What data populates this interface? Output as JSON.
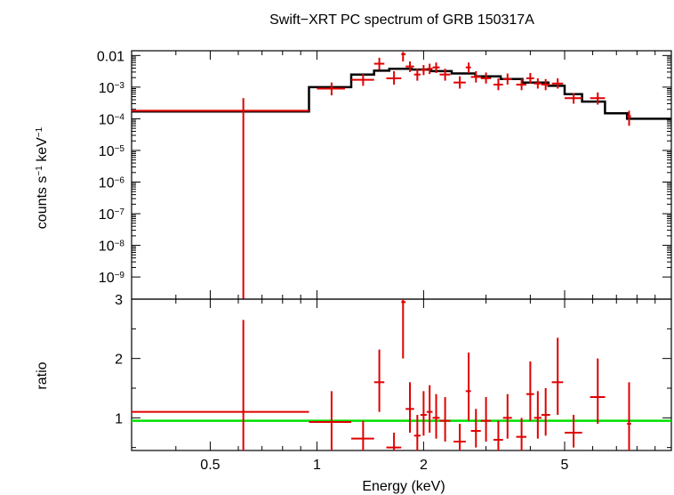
{
  "chart_data": {
    "type": "scatter",
    "title": "Swift−XRT PC spectrum of GRB 150317A",
    "xlabel": "Energy (keV)",
    "xscale": "log",
    "xlim": [
      0.3,
      10
    ],
    "xticks": [
      {
        "v": 0.5,
        "label": "0.5"
      },
      {
        "v": 1,
        "label": "1"
      },
      {
        "v": 2,
        "label": "2"
      },
      {
        "v": 5,
        "label": "5"
      }
    ],
    "top_panel": {
      "ylabel": "counts s",
      "ylabel_sup1": "−1",
      "ylabel_mid": " keV",
      "ylabel_sup2": "−1",
      "yscale": "log",
      "ylim_log10": [
        -9.7,
        -1.85
      ],
      "yticks": [
        {
          "e": -2,
          "base": "0.01",
          "sup": ""
        },
        {
          "e": -3,
          "base": "10",
          "sup": "−3"
        },
        {
          "e": -4,
          "base": "10",
          "sup": "−4"
        },
        {
          "e": -5,
          "base": "10",
          "sup": "−5"
        },
        {
          "e": -6,
          "base": "10",
          "sup": "−6"
        },
        {
          "e": -7,
          "base": "10",
          "sup": "−7"
        },
        {
          "e": -8,
          "base": "10",
          "sup": "−8"
        },
        {
          "e": -9,
          "base": "10",
          "sup": "−9"
        }
      ],
      "data": [
        {
          "xlo": 0.3,
          "xhi": 0.95,
          "x": 0.62,
          "y": 0.00018,
          "ylo": 1e-10,
          "yhi": 0.00045
        },
        {
          "xlo": 1.0,
          "xhi": 1.2,
          "x": 1.1,
          "y": 0.0009,
          "ylo": 0.00055,
          "yhi": 0.0014
        },
        {
          "xlo": 1.25,
          "xhi": 1.45,
          "x": 1.35,
          "y": 0.0017,
          "ylo": 0.0011,
          "yhi": 0.0026
        },
        {
          "xlo": 1.45,
          "xhi": 1.55,
          "x": 1.5,
          "y": 0.0055,
          "ylo": 0.0035,
          "yhi": 0.0085
        },
        {
          "xlo": 1.57,
          "xhi": 1.73,
          "x": 1.65,
          "y": 0.0019,
          "ylo": 0.0012,
          "yhi": 0.0032
        },
        {
          "xlo": 1.73,
          "xhi": 1.78,
          "x": 1.75,
          "y": 0.011,
          "ylo": 0.0065,
          "yhi": 0.013
        },
        {
          "xlo": 1.78,
          "xhi": 1.88,
          "x": 1.83,
          "y": 0.0045,
          "ylo": 0.003,
          "yhi": 0.0065
        },
        {
          "xlo": 1.88,
          "xhi": 1.96,
          "x": 1.92,
          "y": 0.0025,
          "ylo": 0.0016,
          "yhi": 0.0038
        },
        {
          "xlo": 1.96,
          "xhi": 2.04,
          "x": 2.0,
          "y": 0.0035,
          "ylo": 0.0024,
          "yhi": 0.005
        },
        {
          "xlo": 2.04,
          "xhi": 2.12,
          "x": 2.08,
          "y": 0.0038,
          "ylo": 0.0026,
          "yhi": 0.0055
        },
        {
          "xlo": 2.12,
          "xhi": 2.22,
          "x": 2.17,
          "y": 0.0042,
          "ylo": 0.0028,
          "yhi": 0.006
        },
        {
          "xlo": 2.22,
          "xhi": 2.38,
          "x": 2.3,
          "y": 0.0025,
          "ylo": 0.0016,
          "yhi": 0.0038
        },
        {
          "xlo": 2.43,
          "xhi": 2.63,
          "x": 2.53,
          "y": 0.0014,
          "ylo": 0.0009,
          "yhi": 0.0022
        },
        {
          "xlo": 2.63,
          "xhi": 2.72,
          "x": 2.68,
          "y": 0.0042,
          "ylo": 0.0028,
          "yhi": 0.006
        },
        {
          "xlo": 2.72,
          "xhi": 2.9,
          "x": 2.81,
          "y": 0.0021,
          "ylo": 0.0014,
          "yhi": 0.0032
        },
        {
          "xlo": 2.9,
          "xhi": 3.1,
          "x": 3.0,
          "y": 0.0019,
          "ylo": 0.0013,
          "yhi": 0.0029
        },
        {
          "xlo": 3.15,
          "xhi": 3.35,
          "x": 3.25,
          "y": 0.0012,
          "ylo": 0.0008,
          "yhi": 0.0019
        },
        {
          "xlo": 3.35,
          "xhi": 3.55,
          "x": 3.45,
          "y": 0.0018,
          "ylo": 0.0012,
          "yhi": 0.0027
        },
        {
          "xlo": 3.65,
          "xhi": 3.9,
          "x": 3.78,
          "y": 0.0012,
          "ylo": 0.0008,
          "yhi": 0.0018
        },
        {
          "xlo": 3.9,
          "xhi": 4.1,
          "x": 4.0,
          "y": 0.0019,
          "ylo": 0.0013,
          "yhi": 0.0028
        },
        {
          "xlo": 4.1,
          "xhi": 4.3,
          "x": 4.2,
          "y": 0.0013,
          "ylo": 0.0009,
          "yhi": 0.0019
        },
        {
          "xlo": 4.3,
          "xhi": 4.55,
          "x": 4.42,
          "y": 0.0012,
          "ylo": 0.0008,
          "yhi": 0.0018
        },
        {
          "xlo": 4.6,
          "xhi": 4.95,
          "x": 4.78,
          "y": 0.0013,
          "ylo": 0.0009,
          "yhi": 0.0019
        },
        {
          "xlo": 5.0,
          "xhi": 5.6,
          "x": 5.3,
          "y": 0.00045,
          "ylo": 0.0003,
          "yhi": 0.00065
        },
        {
          "xlo": 5.9,
          "xhi": 6.5,
          "x": 6.2,
          "y": 0.00045,
          "ylo": 0.00028,
          "yhi": 0.00068
        },
        {
          "xlo": 7.5,
          "xhi": 7.7,
          "x": 7.6,
          "y": 0.00012,
          "ylo": 6e-05,
          "yhi": 0.00018
        }
      ],
      "model_steps": [
        {
          "xlo": 0.3,
          "xhi": 0.95,
          "y": 0.00017
        },
        {
          "xlo": 0.95,
          "xhi": 1.25,
          "y": 0.001
        },
        {
          "xlo": 1.25,
          "xhi": 1.45,
          "y": 0.0025
        },
        {
          "xlo": 1.45,
          "xhi": 1.6,
          "y": 0.0033
        },
        {
          "xlo": 1.6,
          "xhi": 1.85,
          "y": 0.0038
        },
        {
          "xlo": 1.85,
          "xhi": 2.1,
          "y": 0.0036
        },
        {
          "xlo": 2.1,
          "xhi": 2.4,
          "y": 0.0032
        },
        {
          "xlo": 2.4,
          "xhi": 2.8,
          "y": 0.0027
        },
        {
          "xlo": 2.8,
          "xhi": 3.3,
          "y": 0.0022
        },
        {
          "xlo": 3.3,
          "xhi": 3.8,
          "y": 0.0018
        },
        {
          "xlo": 3.8,
          "xhi": 4.5,
          "y": 0.0014
        },
        {
          "xlo": 4.5,
          "xhi": 5.0,
          "y": 0.0011
        },
        {
          "xlo": 5.0,
          "xhi": 5.6,
          "y": 0.0006
        },
        {
          "xlo": 5.6,
          "xhi": 6.5,
          "y": 0.00035
        },
        {
          "xlo": 6.5,
          "xhi": 7.5,
          "y": 0.00015
        },
        {
          "xlo": 7.5,
          "xhi": 10,
          "y": 0.0001
        }
      ]
    },
    "bottom_panel": {
      "ylabel": "ratio",
      "ylim": [
        0.45,
        3.0
      ],
      "yticks": [
        1,
        2,
        3
      ],
      "unity": 0.95,
      "data": [
        {
          "xlo": 0.3,
          "xhi": 0.95,
          "x": 0.62,
          "y": 1.1,
          "ylo": 0.45,
          "yhi": 2.65
        },
        {
          "xlo": 0.95,
          "xhi": 1.25,
          "x": 1.1,
          "y": 0.93,
          "ylo": 0.45,
          "yhi": 1.45
        },
        {
          "xlo": 1.25,
          "xhi": 1.45,
          "x": 1.35,
          "y": 0.65,
          "ylo": 0.45,
          "yhi": 0.95
        },
        {
          "xlo": 1.45,
          "xhi": 1.55,
          "x": 1.5,
          "y": 1.6,
          "ylo": 1.1,
          "yhi": 2.15
        },
        {
          "xlo": 1.57,
          "xhi": 1.73,
          "x": 1.65,
          "y": 0.5,
          "ylo": 0.45,
          "yhi": 0.75
        },
        {
          "xlo": 1.73,
          "xhi": 1.78,
          "x": 1.75,
          "y": 2.95,
          "ylo": 2.0,
          "yhi": 3.0
        },
        {
          "xlo": 1.78,
          "xhi": 1.88,
          "x": 1.83,
          "y": 1.15,
          "ylo": 0.75,
          "yhi": 1.6
        },
        {
          "xlo": 1.88,
          "xhi": 1.96,
          "x": 1.92,
          "y": 0.7,
          "ylo": 0.45,
          "yhi": 1.05
        },
        {
          "xlo": 1.96,
          "xhi": 2.04,
          "x": 2.0,
          "y": 1.05,
          "ylo": 0.7,
          "yhi": 1.45
        },
        {
          "xlo": 2.04,
          "xhi": 2.12,
          "x": 2.08,
          "y": 1.1,
          "ylo": 0.75,
          "yhi": 1.55
        },
        {
          "xlo": 2.12,
          "xhi": 2.22,
          "x": 2.17,
          "y": 1.0,
          "ylo": 0.65,
          "yhi": 1.4
        },
        {
          "xlo": 2.22,
          "xhi": 2.38,
          "x": 2.3,
          "y": 0.95,
          "ylo": 0.6,
          "yhi": 1.35
        },
        {
          "xlo": 2.43,
          "xhi": 2.63,
          "x": 2.53,
          "y": 0.6,
          "ylo": 0.45,
          "yhi": 0.9
        },
        {
          "xlo": 2.63,
          "xhi": 2.72,
          "x": 2.68,
          "y": 1.45,
          "ylo": 0.95,
          "yhi": 2.1
        },
        {
          "xlo": 2.72,
          "xhi": 2.9,
          "x": 2.81,
          "y": 0.78,
          "ylo": 0.5,
          "yhi": 1.15
        },
        {
          "xlo": 2.9,
          "xhi": 3.1,
          "x": 3.0,
          "y": 0.95,
          "ylo": 0.6,
          "yhi": 1.35
        },
        {
          "xlo": 3.15,
          "xhi": 3.35,
          "x": 3.25,
          "y": 0.63,
          "ylo": 0.45,
          "yhi": 0.95
        },
        {
          "xlo": 3.35,
          "xhi": 3.55,
          "x": 3.45,
          "y": 1.0,
          "ylo": 0.65,
          "yhi": 1.4
        },
        {
          "xlo": 3.65,
          "xhi": 3.9,
          "x": 3.78,
          "y": 0.68,
          "ylo": 0.45,
          "yhi": 1.0
        },
        {
          "xlo": 3.9,
          "xhi": 4.1,
          "x": 4.0,
          "y": 1.4,
          "ylo": 0.95,
          "yhi": 1.95
        },
        {
          "xlo": 4.1,
          "xhi": 4.3,
          "x": 4.2,
          "y": 1.0,
          "ylo": 0.65,
          "yhi": 1.45
        },
        {
          "xlo": 4.3,
          "xhi": 4.55,
          "x": 4.42,
          "y": 1.05,
          "ylo": 0.7,
          "yhi": 1.5
        },
        {
          "xlo": 4.6,
          "xhi": 4.95,
          "x": 4.78,
          "y": 1.6,
          "ylo": 1.05,
          "yhi": 2.35
        },
        {
          "xlo": 5.0,
          "xhi": 5.6,
          "x": 5.3,
          "y": 0.75,
          "ylo": 0.5,
          "yhi": 1.05
        },
        {
          "xlo": 5.9,
          "xhi": 6.5,
          "x": 6.2,
          "y": 1.35,
          "ylo": 0.9,
          "yhi": 2.0
        },
        {
          "xlo": 7.5,
          "xhi": 7.7,
          "x": 7.6,
          "y": 0.9,
          "ylo": 0.45,
          "yhi": 1.6
        }
      ]
    },
    "colors": {
      "data": "#e00000",
      "model": "#000000",
      "unity": "#00e000"
    }
  }
}
